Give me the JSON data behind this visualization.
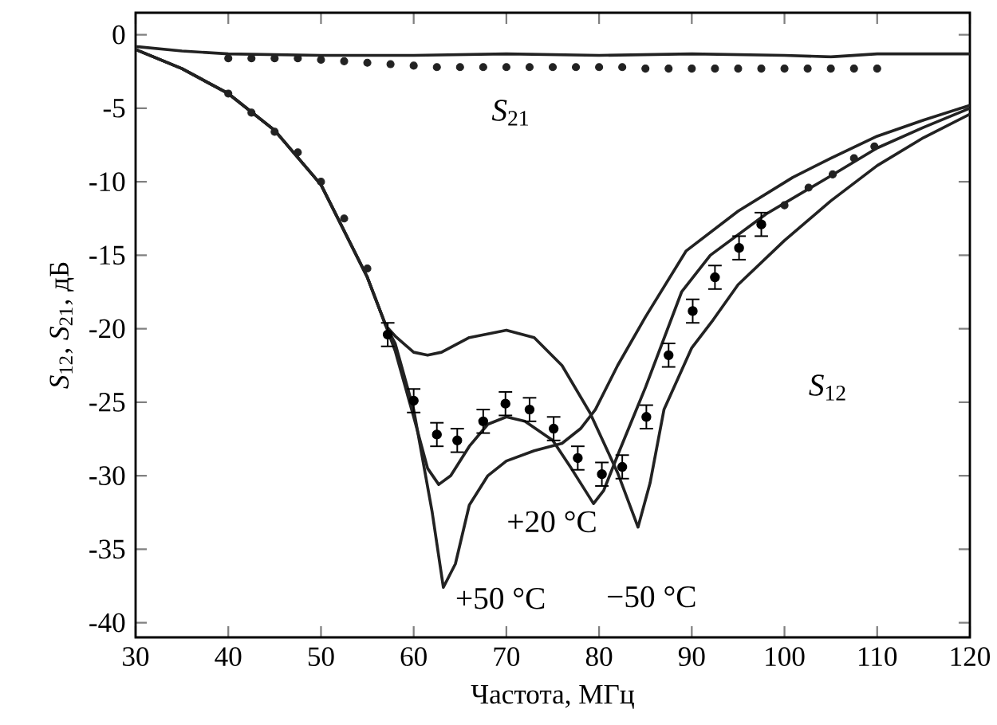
{
  "chart_data": {
    "type": "line",
    "xlabel": "Частота, МГц",
    "ylabel": "*S*$_{12}$,  *S*$_{21}$, дБ",
    "xlim": [
      30,
      120
    ],
    "ylim": [
      -41,
      1.5
    ],
    "xticks": [
      30,
      40,
      50,
      60,
      70,
      80,
      90,
      100,
      110,
      120
    ],
    "yticks": [
      0,
      -5,
      -10,
      -15,
      -20,
      -25,
      -30,
      -35,
      -40
    ],
    "grid": false,
    "legend": false,
    "line_style": "solid",
    "series": [
      {
        "marker": "none",
        "color": "#222222",
        "x": [
          30,
          35,
          40,
          50,
          60,
          70,
          80,
          90,
          100,
          105,
          110,
          120
        ],
        "values": [
          -0.8,
          -1.1,
          -1.3,
          -1.4,
          -1.4,
          -1.3,
          -1.4,
          -1.3,
          -1.4,
          -1.5,
          -1.3,
          -1.3
        ]
      },
      {
        "type": "scatter",
        "marker": "circle",
        "color": "#222222",
        "x": [
          40,
          42.5,
          45,
          47.5,
          50,
          52.5,
          55,
          57.5,
          60,
          62.5,
          65,
          67.5,
          70,
          72.5,
          75,
          77.5,
          80,
          82.5,
          85,
          87.5,
          90,
          92.5,
          95,
          97.5,
          100,
          102.5,
          105,
          107.5,
          110
        ],
        "values": [
          -1.6,
          -1.6,
          -1.6,
          -1.6,
          -1.7,
          -1.8,
          -1.9,
          -2.0,
          -2.1,
          -2.2,
          -2.2,
          -2.2,
          -2.2,
          -2.2,
          -2.2,
          -2.2,
          -2.2,
          -2.2,
          -2.3,
          -2.3,
          -2.3,
          -2.3,
          -2.3,
          -2.3,
          -2.3,
          -2.3,
          -2.3,
          -2.3,
          -2.3
        ]
      },
      {
        "name": "+50 °C",
        "marker": "none",
        "color": "#222222",
        "x": [
          30,
          35,
          40,
          45,
          50,
          55,
          57,
          58,
          60,
          62,
          63.2,
          64.5,
          66,
          68,
          70,
          73,
          76,
          78,
          79.6,
          82,
          85,
          89.4,
          95,
          100.9,
          105,
          110,
          115,
          120
        ],
        "values": [
          -1.0,
          -2.3,
          -4.0,
          -6.5,
          -10.2,
          -16.5,
          -19.8,
          -21.0,
          -25.5,
          -32.5,
          -37.6,
          -36.0,
          -32.0,
          -30.0,
          -29.0,
          -28.3,
          -27.8,
          -26.8,
          -25.5,
          -22.5,
          -19.2,
          -14.7,
          -12.0,
          -9.7,
          -8.4,
          -6.9,
          -5.8,
          -4.8
        ]
      },
      {
        "name": "+20 °C",
        "marker": "none",
        "color": "#222222",
        "x": [
          30,
          35,
          40,
          45,
          50,
          55,
          57,
          58,
          60,
          61.5,
          62.7,
          64,
          66,
          68,
          70,
          72,
          75,
          77,
          79.4,
          80.5,
          82.2,
          85,
          88.9,
          92,
          98,
          105,
          110,
          115,
          120
        ],
        "values": [
          -1.0,
          -2.3,
          -4.0,
          -6.5,
          -10.2,
          -16.5,
          -19.8,
          -21.5,
          -26.0,
          -29.5,
          -30.6,
          -30.0,
          -28.0,
          -26.5,
          -26.0,
          -26.3,
          -27.6,
          -29.5,
          -31.9,
          -31.0,
          -28.3,
          -24.0,
          -17.5,
          -15.0,
          -12.2,
          -9.6,
          -7.7,
          -6.3,
          -5.0
        ]
      },
      {
        "name": "−50 °C",
        "marker": "none",
        "color": "#222222",
        "x": [
          30,
          35,
          40,
          45,
          50,
          55,
          57,
          58,
          60,
          61.5,
          63,
          66,
          70,
          73,
          76,
          79,
          82,
          84.2,
          85.5,
          87,
          90,
          92.3,
          95,
          100,
          105,
          110,
          115,
          120
        ],
        "values": [
          -1.0,
          -2.3,
          -4.0,
          -6.5,
          -10.2,
          -16.5,
          -19.8,
          -20.5,
          -21.6,
          -21.8,
          -21.6,
          -20.6,
          -20.1,
          -20.6,
          -22.5,
          -25.7,
          -29.8,
          -33.5,
          -30.5,
          -25.5,
          -21.3,
          -19.4,
          -17.0,
          -14.0,
          -11.3,
          -8.9,
          -7.0,
          -5.4
        ]
      },
      {
        "type": "scatter",
        "marker": "circle",
        "color": "#222222",
        "x": [
          40,
          42.5,
          45,
          47.5,
          50,
          52.5,
          55,
          57.2,
          60,
          62.5,
          64.7,
          67.5,
          69.9,
          72.5,
          75.1,
          77.7,
          80.3,
          82.5,
          85.1,
          87.5,
          90.1,
          92.5,
          95.1,
          97.5,
          100,
          102.6,
          105.2,
          107.5,
          109.7
        ],
        "values": [
          -4.0,
          -5.3,
          -6.6,
          -8.0,
          -10.0,
          -12.5,
          -15.9,
          -20.4,
          -24.9,
          -27.2,
          -27.6,
          -26.3,
          -25.1,
          -25.5,
          -26.8,
          -28.8,
          -29.9,
          -29.4,
          -26.0,
          -21.8,
          -18.8,
          -16.5,
          -14.5,
          -12.9,
          -11.6,
          -10.4,
          -9.5,
          -8.4,
          -7.6
        ],
        "errors": [
          null,
          null,
          null,
          null,
          null,
          null,
          null,
          0.8,
          0.8,
          0.8,
          0.8,
          0.8,
          0.8,
          0.8,
          0.8,
          0.8,
          0.8,
          0.8,
          0.8,
          0.8,
          0.8,
          0.8,
          0.8,
          0.8,
          null,
          null,
          null,
          null,
          null
        ]
      }
    ],
    "annotations": [
      "*S*$_{21}$",
      "*S*$_{12}$"
    ]
  }
}
